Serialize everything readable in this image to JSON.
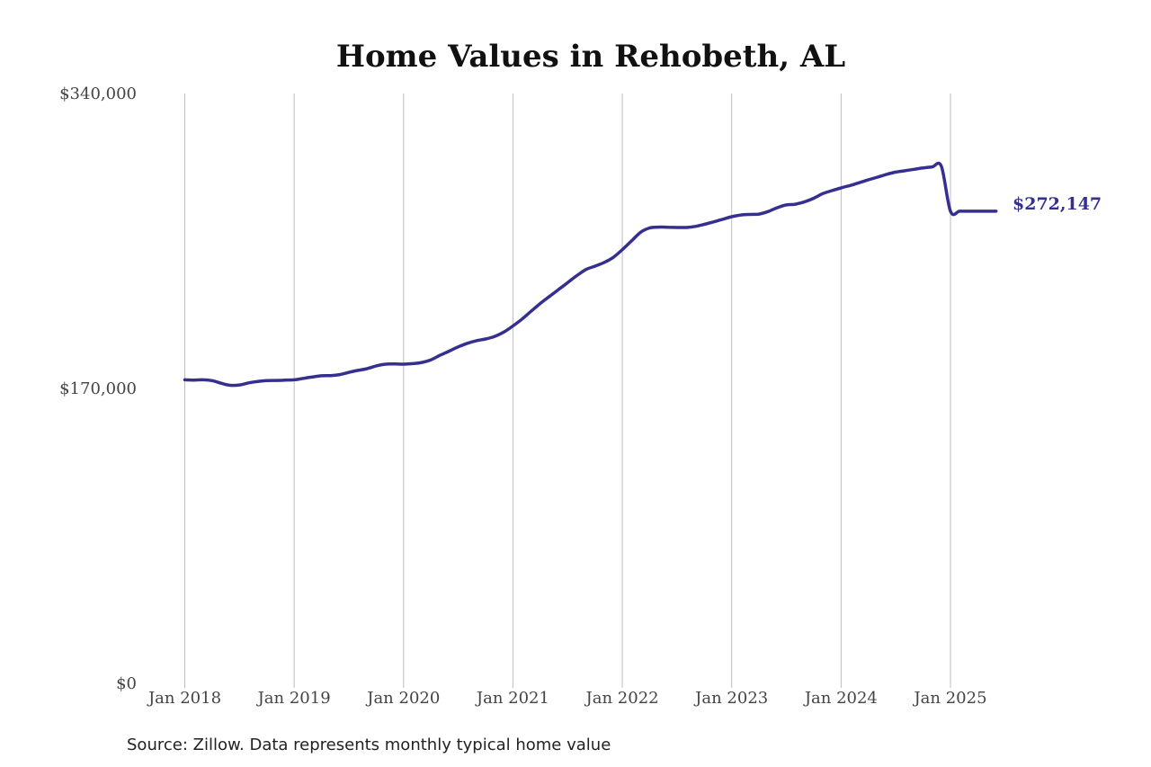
{
  "chart_data": {
    "type": "line",
    "title": "Home Values in Rehobeth, AL",
    "xlabel": "",
    "ylabel": "",
    "x_ticks": [
      "Jan 2018",
      "Jan 2019",
      "Jan 2020",
      "Jan 2021",
      "Jan 2022",
      "Jan 2023",
      "Jan 2024",
      "Jan 2025"
    ],
    "y_ticks": [
      "$0",
      "$170,000",
      "$340,000"
    ],
    "ylim": [
      0,
      340000
    ],
    "xlim": [
      "2018-01",
      "2025-06"
    ],
    "grid": "vertical",
    "legend": "none",
    "end_label": "$272,147",
    "line_color": "#35308f",
    "series": [
      {
        "x": [
          "2018-01",
          "2018-02",
          "2018-03",
          "2018-04",
          "2018-05",
          "2018-06",
          "2018-07",
          "2018-08",
          "2018-09",
          "2018-10",
          "2018-11",
          "2018-12",
          "2019-01",
          "2019-02",
          "2019-03",
          "2019-04",
          "2019-05",
          "2019-06",
          "2019-07",
          "2019-08",
          "2019-09",
          "2019-10",
          "2019-11",
          "2019-12",
          "2020-01",
          "2020-02",
          "2020-03",
          "2020-04",
          "2020-05",
          "2020-06",
          "2020-07",
          "2020-08",
          "2020-09",
          "2020-10",
          "2020-11",
          "2020-12",
          "2021-01",
          "2021-02",
          "2021-03",
          "2021-04",
          "2021-05",
          "2021-06",
          "2021-07",
          "2021-08",
          "2021-09",
          "2021-10",
          "2021-11",
          "2021-12",
          "2022-01",
          "2022-02",
          "2022-03",
          "2022-04",
          "2022-05",
          "2022-06",
          "2022-07",
          "2022-08",
          "2022-09",
          "2022-10",
          "2022-11",
          "2022-12",
          "2023-01",
          "2023-02",
          "2023-03",
          "2023-04",
          "2023-05",
          "2023-06",
          "2023-07",
          "2023-08",
          "2023-09",
          "2023-10",
          "2023-11",
          "2023-12",
          "2024-01",
          "2024-02",
          "2024-03",
          "2024-04",
          "2024-05",
          "2024-06",
          "2024-07",
          "2024-08",
          "2024-09",
          "2024-10",
          "2024-11",
          "2024-12",
          "2025-01",
          "2025-02",
          "2025-03",
          "2025-04",
          "2025-05",
          "2025-06"
        ],
        "values": [
          175000,
          174800,
          175000,
          174500,
          173000,
          171800,
          172000,
          173200,
          174000,
          174500,
          174600,
          174800,
          175000,
          175800,
          176600,
          177300,
          177400,
          178000,
          179300,
          180400,
          181400,
          183000,
          184000,
          184100,
          184000,
          184300,
          185000,
          186500,
          189100,
          191500,
          194000,
          196000,
          197500,
          198500,
          200000,
          202500,
          206000,
          210000,
          214500,
          219000,
          223000,
          227000,
          231000,
          235000,
          238500,
          240500,
          242600,
          245500,
          250000,
          255000,
          260000,
          262500,
          263000,
          262900,
          262800,
          262800,
          263400,
          264600,
          266000,
          267500,
          269000,
          270000,
          270300,
          270500,
          272000,
          274200,
          275800,
          276200,
          277600,
          279600,
          282300,
          284000,
          285600,
          287000,
          288600,
          290300,
          291800,
          293400,
          294700,
          295500,
          296300,
          297100,
          297700,
          298000,
          272147,
          272147,
          272147,
          272147,
          272147,
          272147
        ]
      }
    ]
  },
  "source": "Source: Zillow. Data represents monthly typical home value"
}
